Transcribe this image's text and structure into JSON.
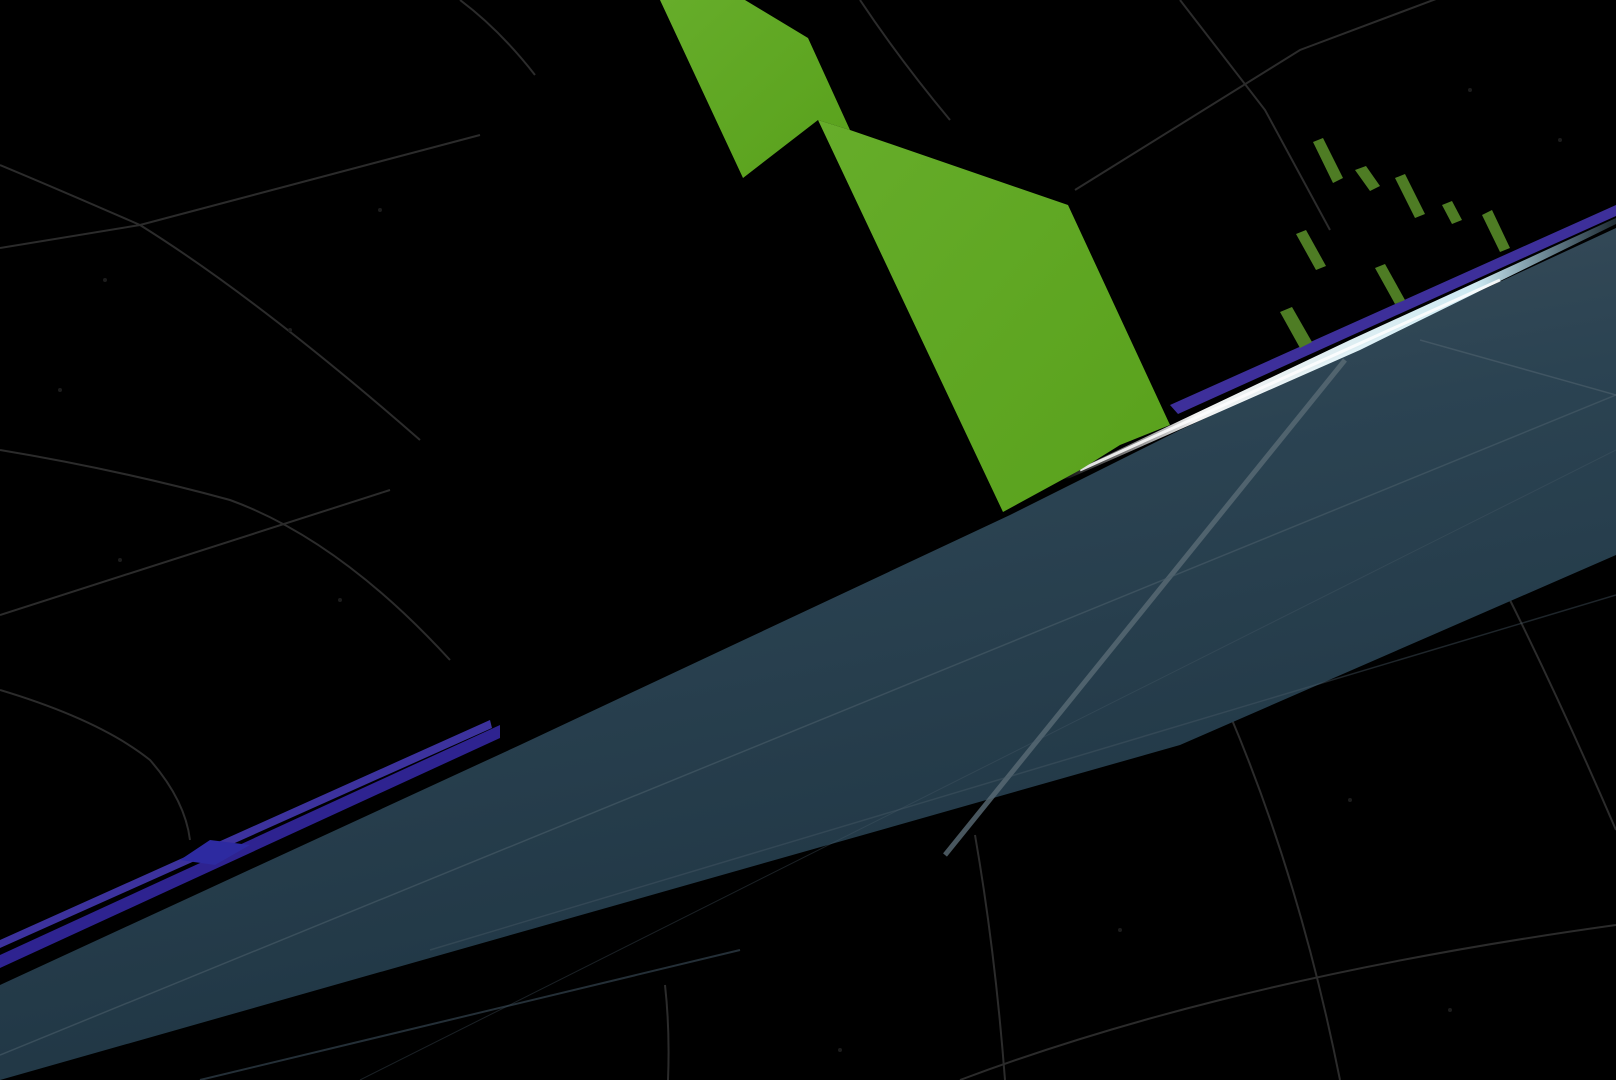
{
  "scene": {
    "background_color": "#000000",
    "grid_color": "#2a2a2a",
    "grid_dot_color": "#1e1e1e",
    "track_color_top": "#3c4f5c",
    "track_color_mid": "#2a4050",
    "track_color_bottom": "#1f3442",
    "track_highlight_color": "#e6fbff",
    "track_edge_color": "#3a2d8f",
    "obstacle_color": "#5fa624",
    "obstacle_fade_color": "#4d7a22",
    "icons": [
      "player-track",
      "green-spike-obstacle",
      "distant-spike-row",
      "purple-rail"
    ]
  }
}
